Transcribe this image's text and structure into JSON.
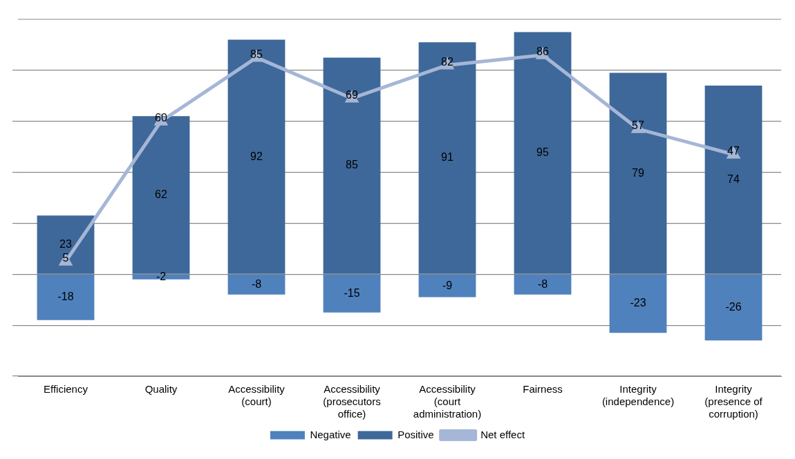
{
  "chart_data": {
    "type": "bar",
    "stacked": true,
    "categories": [
      "Efficiency",
      "Quality",
      "Accessibility (court)",
      "Accessibility (prosecutors office)",
      "Accessibility (court administration)",
      "Fairness",
      "Integrity (independence)",
      "Integrity (presence of corruption)"
    ],
    "series": [
      {
        "name": "Negative",
        "color": "#4f81bd",
        "values": [
          -18,
          -2,
          -8,
          -15,
          -9,
          -8,
          -23,
          -26
        ]
      },
      {
        "name": "Positive",
        "color": "#3e6899",
        "values": [
          23,
          62,
          92,
          85,
          91,
          95,
          79,
          74
        ]
      },
      {
        "name": "Net effect",
        "type": "line",
        "color": "#a5b6d6",
        "marker": "triangle",
        "values": [
          5,
          60,
          85,
          69,
          82,
          86,
          57,
          47
        ]
      }
    ],
    "ylim": [
      -40,
      100
    ],
    "yticks": [
      {
        "value": -40,
        "label": null
      },
      {
        "value": -20,
        "label": null
      },
      {
        "value": 0,
        "label": null
      },
      {
        "value": 20,
        "label": null
      },
      {
        "value": 40,
        "label": null
      },
      {
        "value": 60,
        "label": null
      },
      {
        "value": 80,
        "label": null
      }
    ],
    "tick_labels": "x",
    "grid": "y",
    "legend": "bottom",
    "data_labels": true
  }
}
